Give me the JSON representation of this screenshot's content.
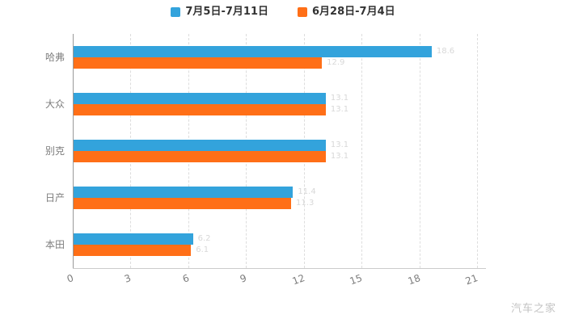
{
  "chart_data": {
    "type": "bar",
    "orientation": "horizontal",
    "title": "",
    "categories": [
      "哈弗",
      "大众",
      "别克",
      "日产",
      "本田"
    ],
    "series": [
      {
        "name": "7月5日-7月11日",
        "color": "#33A3DC",
        "values": [
          18.6,
          13.1,
          13.1,
          11.4,
          6.2
        ]
      },
      {
        "name": "6月28日-7月4日",
        "color": "#FF6F17",
        "values": [
          12.9,
          13.1,
          13.1,
          11.3,
          6.1
        ]
      }
    ],
    "xlim": [
      0,
      21
    ],
    "xticks": [
      0,
      3,
      6,
      9,
      12,
      15,
      18,
      21
    ],
    "grid": true,
    "gridline_style": "dashed",
    "legend_position": "top"
  },
  "watermark": "汽车之家"
}
